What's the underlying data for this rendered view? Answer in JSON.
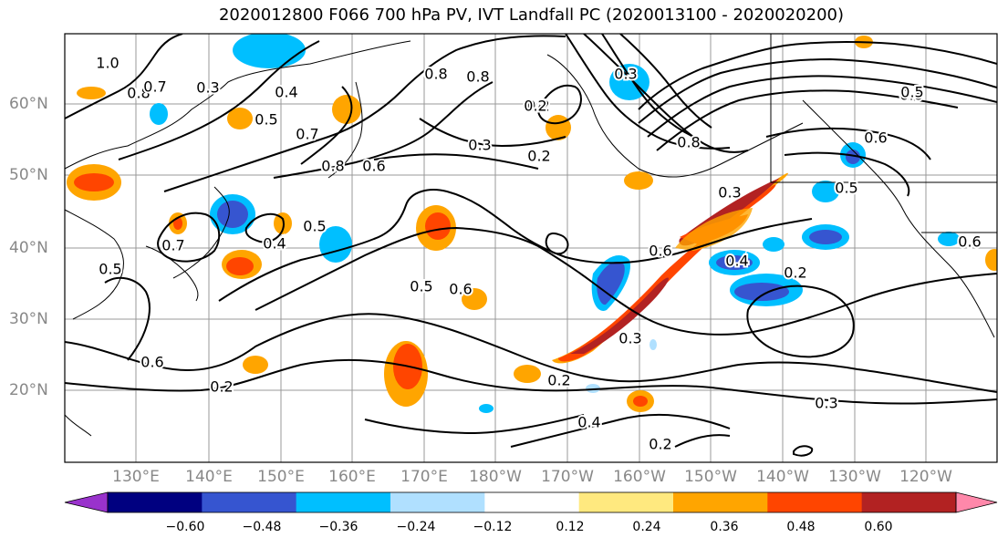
{
  "title": "2020012800 F066 700 hPa PV, IVT Landfall PC (2020013100 - 2020020200)",
  "lat_labels": [
    "60°N",
    "50°N",
    "40°N",
    "30°N",
    "20°N"
  ],
  "lon_labels": [
    "130°E",
    "140°E",
    "150°E",
    "160°E",
    "170°E",
    "180°W",
    "170°W",
    "160°W",
    "150°W",
    "140°W",
    "130°W",
    "120°W"
  ],
  "colorbar": {
    "ticks": [
      "−0.60",
      "−0.48",
      "−0.36",
      "−0.24",
      "−0.12",
      "0.12",
      "0.24",
      "0.36",
      "0.48",
      "0.60"
    ],
    "colors": [
      "#9932cc",
      "#000080",
      "#3655d0",
      "#00bfff",
      "#b0e0ff",
      "#ffffff",
      "#ffe97f",
      "#ffa500",
      "#ff4500",
      "#b22222",
      "#ff88aa"
    ]
  },
  "contour_labels": [
    "1.0",
    "0.8",
    "0.7",
    "0.3",
    "0.5",
    "0.4",
    "0.8",
    "0.2",
    "0.8",
    "0.3",
    "0.2",
    "0.8",
    "0.7",
    "0.5",
    "0.4",
    "0.6",
    "0.5",
    "0.7",
    "0.8",
    "0.6",
    "0.5",
    "0.6",
    "0.6",
    "0.5",
    "0.3",
    "0.6",
    "0.4",
    "0.2",
    "0.3",
    "0.6",
    "0.2",
    "0.2",
    "0.4",
    "0.3",
    "0.2",
    "0.3",
    "0.2",
    "0.5",
    "0.6"
  ]
}
